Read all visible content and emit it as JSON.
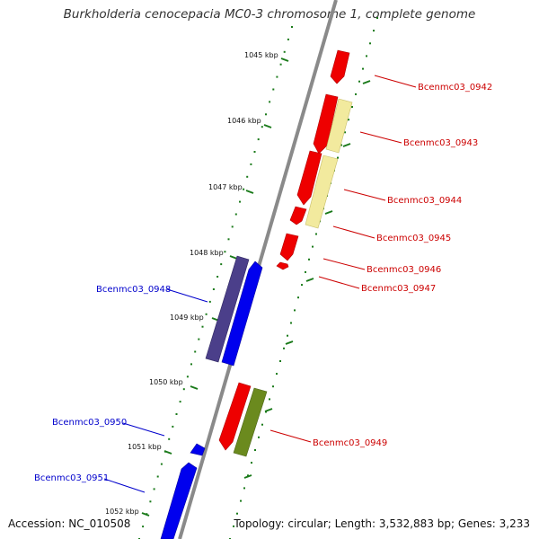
{
  "title": "Burkholderia cenocepacia MC0-3 chromosome 1, complete genome",
  "footer": {
    "accession": "Accession: NC_010508",
    "topology": "Topology: circular; Length: 3,532,883 bp; Genes: 3,233"
  },
  "ticks": [
    "1045 kbp",
    "1046 kbp",
    "1047 kbp",
    "1048 kbp",
    "1049 kbp",
    "1050 kbp",
    "1051 kbp",
    "1052 kbp"
  ],
  "colors": {
    "forward_cds": "#ee0000",
    "reverse_cds": "#0000ee",
    "pseudo_pale": "#f2ea9e",
    "olive": "#6b8a1e",
    "reverse_dark": "#4b3f8a",
    "tick": "#1a7a1a",
    "backbone": "#8a8a8a",
    "label_red": "#cc0000",
    "label_blue": "#0000cc"
  },
  "genes_labeled": [
    {
      "name": "Bcenmc03_0942",
      "strand": "forward"
    },
    {
      "name": "Bcenmc03_0943",
      "strand": "forward"
    },
    {
      "name": "Bcenmc03_0944",
      "strand": "forward"
    },
    {
      "name": "Bcenmc03_0945",
      "strand": "forward"
    },
    {
      "name": "Bcenmc03_0946",
      "strand": "forward"
    },
    {
      "name": "Bcenmc03_0947",
      "strand": "forward"
    },
    {
      "name": "Bcenmc03_0948",
      "strand": "reverse"
    },
    {
      "name": "Bcenmc03_0949",
      "strand": "forward"
    },
    {
      "name": "Bcenmc03_0950",
      "strand": "reverse"
    },
    {
      "name": "Bcenmc03_0951",
      "strand": "reverse"
    }
  ]
}
